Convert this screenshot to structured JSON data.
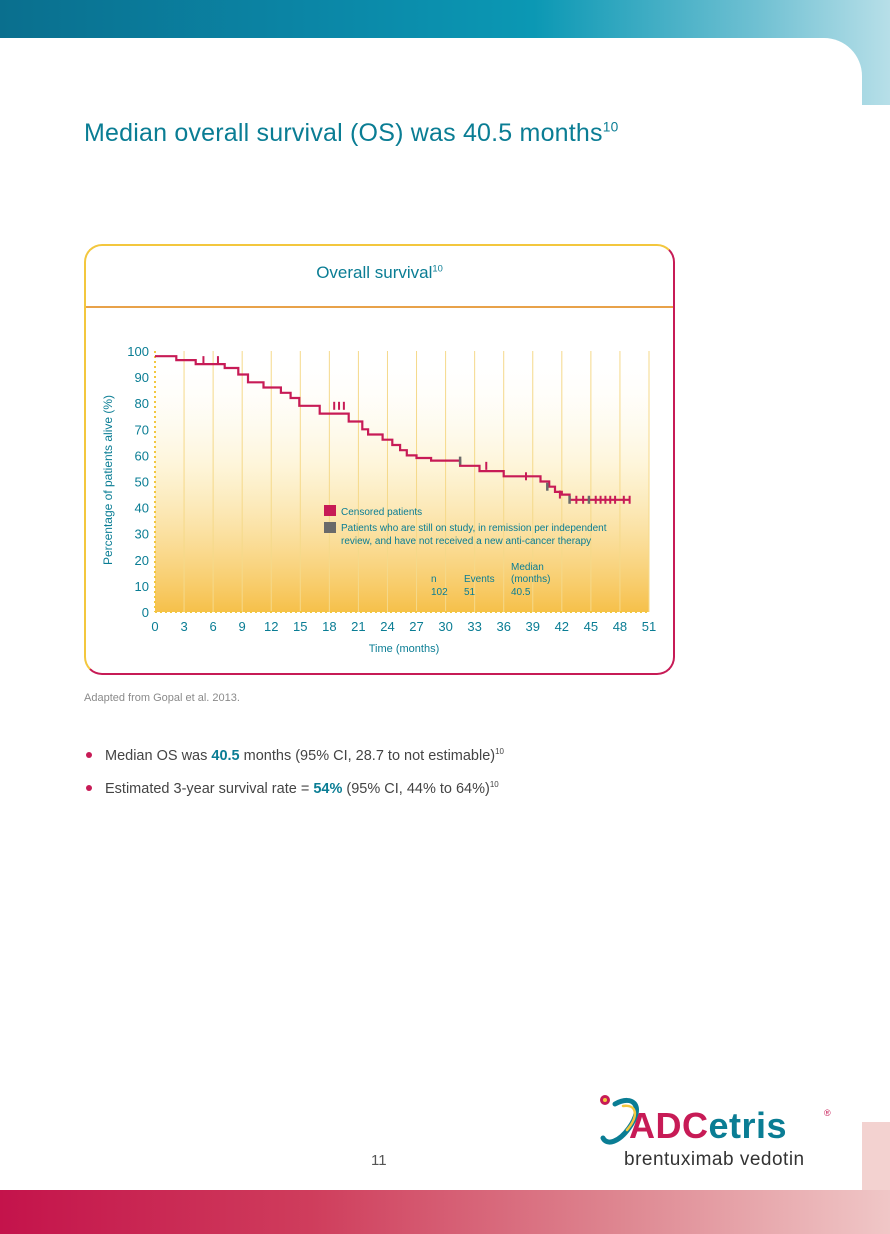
{
  "page": {
    "title": "Median overall survival (OS) was 40.5 months",
    "title_ref": "10",
    "source_note": "Adapted from Gopal et al. 2013.",
    "page_number": "11"
  },
  "bullets": [
    {
      "pre": "Median OS was ",
      "highlight": "40.5",
      "post": " months (95% CI, 28.7 to not estimable)",
      "ref": "10"
    },
    {
      "pre": "Estimated 3-year survival rate = ",
      "highlight": "54%",
      "post": " (95% CI, 44% to 64%)",
      "ref": "10"
    }
  ],
  "logo": {
    "brand_a": "ADC",
    "brand_b": "etris",
    "registered": "®",
    "generic_name": "brentuximab vedotin"
  },
  "colors": {
    "teal": "#0a7d94",
    "magenta": "#c71b56",
    "censored": "#c71b56",
    "ongoing": "#6a6a6a",
    "gold": "#f3c73e"
  },
  "chart_data": {
    "type": "line",
    "title": "Overall survival",
    "title_ref": "10",
    "xlabel": "Time (months)",
    "ylabel": "Percentage of patients alive (%)",
    "xlim": [
      0,
      51
    ],
    "ylim": [
      0,
      100
    ],
    "x_ticks": [
      "0",
      "3",
      "6",
      "9",
      "12",
      "15",
      "18",
      "21",
      "24",
      "27",
      "30",
      "33",
      "36",
      "39",
      "42",
      "45",
      "48",
      "51"
    ],
    "y_ticks": [
      "0",
      "10",
      "20",
      "30",
      "40",
      "50",
      "60",
      "70",
      "80",
      "90",
      "100"
    ],
    "grid": "vertical",
    "series": [
      {
        "x": [
          0,
          2.2,
          2.2,
          4.2,
          4.2,
          7.2,
          7.2,
          8.6,
          8.6,
          9.6,
          9.6,
          11.2,
          11.2,
          13.0,
          13.0,
          14.0,
          14.0,
          14.9,
          14.9,
          15.5,
          15.5,
          17.0,
          17.0,
          20.0,
          20.0,
          21.4,
          21.4,
          22.0,
          22.0,
          23.5,
          23.5,
          24.5,
          24.5,
          25.3,
          25.3,
          26.0,
          26.0,
          27.0,
          27.0,
          28.5,
          28.5,
          31.5,
          31.5,
          33.5,
          33.5,
          36.0,
          36.0,
          39.8,
          39.8,
          40.7,
          40.7,
          41.3,
          41.3,
          42.0,
          42.0,
          42.8,
          42.8,
          49.0
        ],
        "y": [
          98,
          98,
          96.5,
          96.5,
          95,
          95,
          93.5,
          93.5,
          91,
          91,
          88,
          88,
          86,
          86,
          84,
          84,
          82,
          82,
          79,
          79,
          79,
          79,
          76,
          76,
          73,
          73,
          70,
          70,
          68,
          68,
          66,
          66,
          64,
          64,
          62,
          62,
          60,
          60,
          59,
          59,
          58,
          58,
          56,
          56,
          54,
          54,
          52,
          52,
          50,
          50,
          48,
          48,
          46,
          46,
          45,
          45,
          43,
          43
        ]
      }
    ],
    "censored_x": [
      5.0,
      6.5,
      18.5,
      19.0,
      19.5,
      34.2,
      38.3,
      41.8,
      43.5,
      44.2,
      45.5,
      46.0,
      46.5,
      47.0,
      47.5,
      48.4,
      49.0
    ],
    "censored_y": [
      96.5,
      96.5,
      79,
      79,
      79,
      56,
      52,
      45,
      43,
      43,
      43,
      43,
      43,
      43,
      43,
      43,
      43
    ],
    "ongoing_x": [
      31.5,
      40.5,
      42.8,
      44.8
    ],
    "ongoing_y": [
      58,
      48,
      43,
      43
    ],
    "legend": {
      "censored_label": "Censored patients",
      "ongoing_label_1": "Patients who are still on study, in remission per independent",
      "ongoing_label_2": "review, and have not received a new anti-cancer therapy"
    },
    "stats_table": {
      "headers": [
        "n",
        "Events",
        "Median"
      ],
      "headers_2": [
        "",
        "",
        "(months)"
      ],
      "values": [
        "102",
        "51",
        "40.5"
      ]
    }
  }
}
